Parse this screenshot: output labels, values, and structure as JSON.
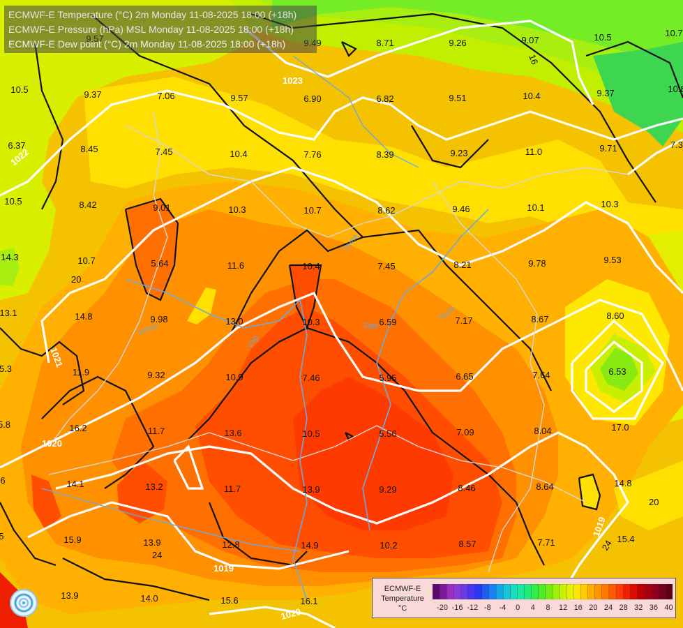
{
  "header": {
    "lines": [
      "ECMWF-E Temperature (°C) 2m Monday 11-08-2025 18:00 (+18h)",
      "ECMWF-E Pressure (hPa) MSL Monday 11-08-2025 18:00 (+18h)",
      "ECMWF-E Dew point (°C) 2m Monday 11-08-2025 18:00 (+18h)"
    ]
  },
  "legend": {
    "caption": [
      "ECMWF-E",
      "Temperature",
      "°C"
    ],
    "tick_labels": [
      "-20",
      "-16",
      "-12",
      "-8",
      "-4",
      "0",
      "4",
      "8",
      "12",
      "16",
      "20",
      "24",
      "28",
      "32",
      "36",
      "40"
    ],
    "colors": [
      "#5a0a6e",
      "#7a1a98",
      "#9a2fbf",
      "#8a3ad8",
      "#6a3ae6",
      "#4a36ee",
      "#2a3af2",
      "#1e5cf4",
      "#1a82f0",
      "#14a6e6",
      "#16c6d8",
      "#1adcc0",
      "#1ce6a0",
      "#22ec78",
      "#30ee4c",
      "#4cec26",
      "#74ee10",
      "#9cf00a",
      "#c4f200",
      "#e6ef00",
      "#ffe600",
      "#ffcc00",
      "#ffae00",
      "#ff9400",
      "#ff7a00",
      "#ff5a00",
      "#ff3c00",
      "#f41e00",
      "#dc0c00",
      "#c00000",
      "#a80010",
      "#90001e",
      "#74001c",
      "#5c0016"
    ]
  },
  "map": {
    "isobar_labels": [
      "1023",
      "1022",
      "1021",
      "1020",
      "1019",
      "1019",
      "1020"
    ],
    "isotherm_labels": [
      "20",
      "24",
      "20",
      "24",
      "16"
    ],
    "river_labels": [
      "Duna",
      "Tisza",
      "Vág",
      "Sajó",
      "Körös"
    ],
    "dewpoints": [
      "9.57",
      "9.49",
      "8.71",
      "9.26",
      "9.07",
      "10.5",
      "10.7",
      "10.5",
      "9.37",
      "7.06",
      "9.57",
      "6.90",
      "6.82",
      "9.51",
      "10.4",
      "9.37",
      "10.8",
      "6.37",
      "8.45",
      "7.45",
      "10.4",
      "7.76",
      "8.39",
      "9.23",
      "11.0",
      "9.71",
      "7.3",
      "10.5",
      "8.42",
      "9.01",
      "10.3",
      "10.7",
      "8.62",
      "9.46",
      "10.1",
      "10.3",
      "14.3",
      "10.7",
      "5.64",
      "11.6",
      "10.4",
      "7.45",
      "8.21",
      "9.78",
      "9.53",
      "13.1",
      "14.8",
      "9.98",
      "13.0",
      "10.3",
      "6.59",
      "7.17",
      "8.67",
      "8.60",
      "5.3",
      "11.9",
      "9.32",
      "10.9",
      "7.46",
      "5.95",
      "6.65",
      "7.64",
      "6.53",
      "5.8",
      "16.2",
      "11.7",
      "13.6",
      "10.5",
      "5.56",
      "7.09",
      "8.04",
      "17.0",
      "6",
      "14.1",
      "13.2",
      "11.7",
      "13.9",
      "9.29",
      "8.46",
      "8.64",
      "14.8",
      "5",
      "15.9",
      "13.9",
      "12.8",
      "14.9",
      "10.2",
      "8.57",
      "7.71",
      "15.4",
      "13.9",
      "14.0",
      "15.6",
      "16.1"
    ]
  }
}
